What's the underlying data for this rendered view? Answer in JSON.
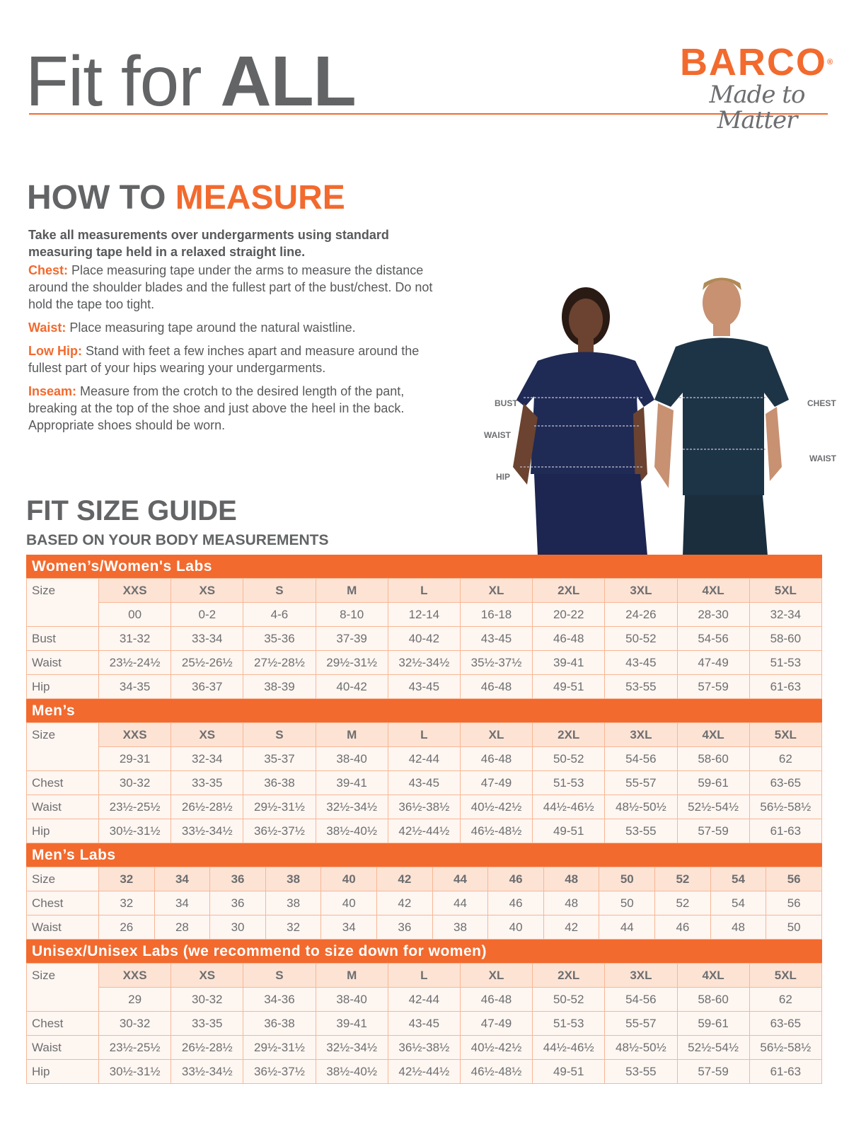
{
  "header": {
    "title_light": "Fit for",
    "title_bold": "ALL",
    "logo_brand": "BARCO",
    "logo_reg": "®",
    "logo_tagline": "Made to Matter"
  },
  "colors": {
    "accent": "#f26a2e",
    "text": "#636466",
    "navy": "#1f2a55",
    "teal_navy": "#1d3446"
  },
  "how": {
    "title_gray": "HOW TO",
    "title_orange": "MEASURE",
    "intro": "Take all measurements over undergarments using standard measuring tape held in a relaxed straight line.",
    "items": [
      {
        "label": "Chest:",
        "text": "Place measuring tape under the arms to measure the distance around the shoulder blades and the fullest part of the bust/chest. Do not hold the tape too tight."
      },
      {
        "label": "Waist:",
        "text": "Place measuring tape around the natural waistline."
      },
      {
        "label": "Low Hip:",
        "text": "Stand with feet a few inches apart and measure around the fullest part of your hips wearing your undergarments."
      },
      {
        "label": "Inseam:",
        "text": "Measure from the crotch to the desired length of the pant, breaking at the top of the shoe and just above the heel in the back. Appropriate shoes should be worn."
      }
    ]
  },
  "figure_labels": {
    "bust": "BUST",
    "waist_w": "WAIST",
    "hip": "HIP",
    "chest": "CHEST",
    "waist_m": "WAIST"
  },
  "guide": {
    "title": "FIT SIZE GUIDE",
    "subtitle": "BASED ON YOUR BODY MEASUREMENTS"
  },
  "tables": [
    {
      "title": "Women’s/Women's Labs",
      "rows": [
        {
          "label": "Size",
          "size": true,
          "cells": [
            "XXS",
            "XS",
            "S",
            "M",
            "L",
            "XL",
            "2XL",
            "3XL",
            "4XL",
            "5XL"
          ]
        },
        {
          "label": "",
          "cells": [
            "00",
            "0-2",
            "4-6",
            "8-10",
            "12-14",
            "16-18",
            "20-22",
            "24-26",
            "28-30",
            "32-34"
          ]
        },
        {
          "label": "Bust",
          "cells": [
            "31-32",
            "33-34",
            "35-36",
            "37-39",
            "40-42",
            "43-45",
            "46-48",
            "50-52",
            "54-56",
            "58-60"
          ]
        },
        {
          "label": "Waist",
          "cells": [
            "23½-24½",
            "25½-26½",
            "27½-28½",
            "29½-31½",
            "32½-34½",
            "35½-37½",
            "39-41",
            "43-45",
            "47-49",
            "51-53"
          ]
        },
        {
          "label": "Hip",
          "cells": [
            "34-35",
            "36-37",
            "38-39",
            "40-42",
            "43-45",
            "46-48",
            "49-51",
            "53-55",
            "57-59",
            "61-63"
          ]
        }
      ]
    },
    {
      "title": "Men’s",
      "rows": [
        {
          "label": "Size",
          "size": true,
          "cells": [
            "XXS",
            "XS",
            "S",
            "M",
            "L",
            "XL",
            "2XL",
            "3XL",
            "4XL",
            "5XL"
          ]
        },
        {
          "label": "",
          "cells": [
            "29-31",
            "32-34",
            "35-37",
            "38-40",
            "42-44",
            "46-48",
            "50-52",
            "54-56",
            "58-60",
            "62"
          ]
        },
        {
          "label": "Chest",
          "cells": [
            "30-32",
            "33-35",
            "36-38",
            "39-41",
            "43-45",
            "47-49",
            "51-53",
            "55-57",
            "59-61",
            "63-65"
          ]
        },
        {
          "label": "Waist",
          "cells": [
            "23½-25½",
            "26½-28½",
            "29½-31½",
            "32½-34½",
            "36½-38½",
            "40½-42½",
            "44½-46½",
            "48½-50½",
            "52½-54½",
            "56½-58½"
          ]
        },
        {
          "label": "Hip",
          "cells": [
            "30½-31½",
            "33½-34½",
            "36½-37½",
            "38½-40½",
            "42½-44½",
            "46½-48½",
            "49-51",
            "53-55",
            "57-59",
            "61-63"
          ]
        }
      ]
    },
    {
      "title": "Men’s Labs",
      "rows": [
        {
          "label": "Size",
          "size": true,
          "cells": [
            "32",
            "34",
            "36",
            "38",
            "40",
            "42",
            "44",
            "46",
            "48",
            "50",
            "52",
            "54",
            "56"
          ]
        },
        {
          "label": "Chest",
          "cells": [
            "32",
            "34",
            "36",
            "38",
            "40",
            "42",
            "44",
            "46",
            "48",
            "50",
            "52",
            "54",
            "56"
          ]
        },
        {
          "label": "Waist",
          "cells": [
            "26",
            "28",
            "30",
            "32",
            "34",
            "36",
            "38",
            "40",
            "42",
            "44",
            "46",
            "48",
            "50"
          ]
        }
      ]
    },
    {
      "title": "Unisex/Unisex Labs (we recommend to size down for women)",
      "rows": [
        {
          "label": "Size",
          "size": true,
          "cells": [
            "XXS",
            "XS",
            "S",
            "M",
            "L",
            "XL",
            "2XL",
            "3XL",
            "4XL",
            "5XL"
          ]
        },
        {
          "label": "",
          "cells": [
            "29",
            "30-32",
            "34-36",
            "38-40",
            "42-44",
            "46-48",
            "50-52",
            "54-56",
            "58-60",
            "62"
          ]
        },
        {
          "label": "Chest",
          "cells": [
            "30-32",
            "33-35",
            "36-38",
            "39-41",
            "43-45",
            "47-49",
            "51-53",
            "55-57",
            "59-61",
            "63-65"
          ]
        },
        {
          "label": "Waist",
          "cells": [
            "23½-25½",
            "26½-28½",
            "29½-31½",
            "32½-34½",
            "36½-38½",
            "40½-42½",
            "44½-46½",
            "48½-50½",
            "52½-54½",
            "56½-58½"
          ]
        },
        {
          "label": "Hip",
          "cells": [
            "30½-31½",
            "33½-34½",
            "36½-37½",
            "38½-40½",
            "42½-44½",
            "46½-48½",
            "49-51",
            "53-55",
            "57-59",
            "61-63"
          ]
        }
      ]
    }
  ]
}
